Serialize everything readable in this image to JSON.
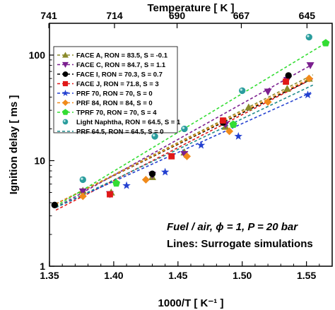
{
  "chart_data": {
    "type": "scatter",
    "title": "",
    "xlabel": "1000/T [ K⁻¹ ]",
    "ylabel": "Ignition delay [ ms ]",
    "top_xlabel": "Temperature [ K ]",
    "xlim": [
      1.35,
      1.57
    ],
    "ylim": [
      1,
      200
    ],
    "yscale": "log",
    "x_ticks": [
      "1.35",
      "1.40",
      "1.45",
      "1.50",
      "1.55"
    ],
    "y_ticks": [
      "1",
      "10",
      "100"
    ],
    "top_ticks": [
      {
        "label": "741",
        "x": 1.3495
      },
      {
        "label": "714",
        "x": 1.4006
      },
      {
        "label": "690",
        "x": 1.4493
      },
      {
        "label": "667",
        "x": 1.4993
      },
      {
        "label": "645",
        "x": 1.5504
      }
    ],
    "annotation_line1": "Fuel / air, ϕ = 1, P = 20 bar",
    "annotation_line2": "Lines: Surrogate simulations",
    "legend_position": "top-left",
    "series": [
      {
        "name": "FACE A, RON = 83.5, S = -0.1",
        "color": "#8a8a2a",
        "marker": "triangle",
        "x": [
          1.376,
          1.398,
          1.43,
          1.455,
          1.487,
          1.505,
          1.535,
          1.552
        ],
        "y": [
          5.2,
          5.0,
          7.0,
          12.0,
          21,
          32,
          48,
          60
        ],
        "line": [
          [
            1.355,
            3.9
          ],
          [
            1.555,
            65
          ]
        ]
      },
      {
        "name": "FACE C, RON = 84.7, S = 1.1",
        "color": "#7b1f8f",
        "marker": "triangle-down",
        "x": [
          1.376,
          1.397,
          1.43,
          1.455,
          1.487,
          1.52,
          1.535,
          1.553
        ],
        "y": [
          5.1,
          4.8,
          7.3,
          11.5,
          22,
          45,
          58,
          80
        ],
        "line": [
          [
            1.355,
            3.6
          ],
          [
            1.555,
            82
          ]
        ]
      },
      {
        "name": "FACE I, RON = 70.3, S = 0.7",
        "color": "#000000",
        "marker": "circle",
        "x": [
          1.354,
          1.43,
          1.485,
          1.536
        ],
        "y": [
          3.8,
          7.5,
          23,
          64
        ],
        "line": [
          [
            1.355,
            3.9
          ],
          [
            1.555,
            60
          ]
        ]
      },
      {
        "name": "FACE J, RON = 71.8, S = 3",
        "color": "#e01818",
        "marker": "square",
        "x": [
          1.397,
          1.445,
          1.485,
          1.534
        ],
        "y": [
          4.8,
          11,
          24,
          56
        ],
        "line": [
          [
            1.355,
            3.4
          ],
          [
            1.555,
            60
          ]
        ]
      },
      {
        "name": "PRF 70, RON = 70, S = 0",
        "color": "#2340d0",
        "marker": "star",
        "x": [
          1.41,
          1.44,
          1.468,
          1.497,
          1.551
        ],
        "y": [
          5.8,
          7.8,
          14,
          17,
          42
        ],
        "line": [
          [
            1.355,
            3.6
          ],
          [
            1.555,
            45
          ]
        ]
      },
      {
        "name": "PRF 84, RON = 84, S = 0",
        "color": "#f08a1a",
        "marker": "diamond",
        "x": [
          1.376,
          1.425,
          1.457,
          1.49,
          1.52,
          1.552
        ],
        "y": [
          4.6,
          6.6,
          11,
          19,
          36,
          60
        ],
        "line": [
          [
            1.355,
            3.9
          ],
          [
            1.555,
            62
          ]
        ]
      },
      {
        "name": "TPRF 70, RON = 70, S = 4",
        "color": "#33dd33",
        "marker": "pentagon",
        "x": [
          1.402,
          1.493,
          1.565
        ],
        "y": [
          6.1,
          22,
          130
        ],
        "line": [
          [
            1.355,
            3.7
          ],
          [
            1.565,
            130
          ]
        ]
      },
      {
        "name": "Light Naphtha, RON = 64.5, S = 1",
        "color": "#2a9d9d",
        "marker": "sphere",
        "x": [
          1.376,
          1.432,
          1.455,
          1.5,
          1.552
        ],
        "y": [
          6.6,
          17,
          20,
          46,
          148
        ],
        "line": null
      },
      {
        "name": "PRF 64.5, RON = 64.5, S = 0",
        "color": "#1d8a8a",
        "marker": "none",
        "x": [],
        "y": [],
        "line": [
          [
            1.355,
            3.6
          ],
          [
            1.555,
            52
          ]
        ]
      }
    ]
  }
}
